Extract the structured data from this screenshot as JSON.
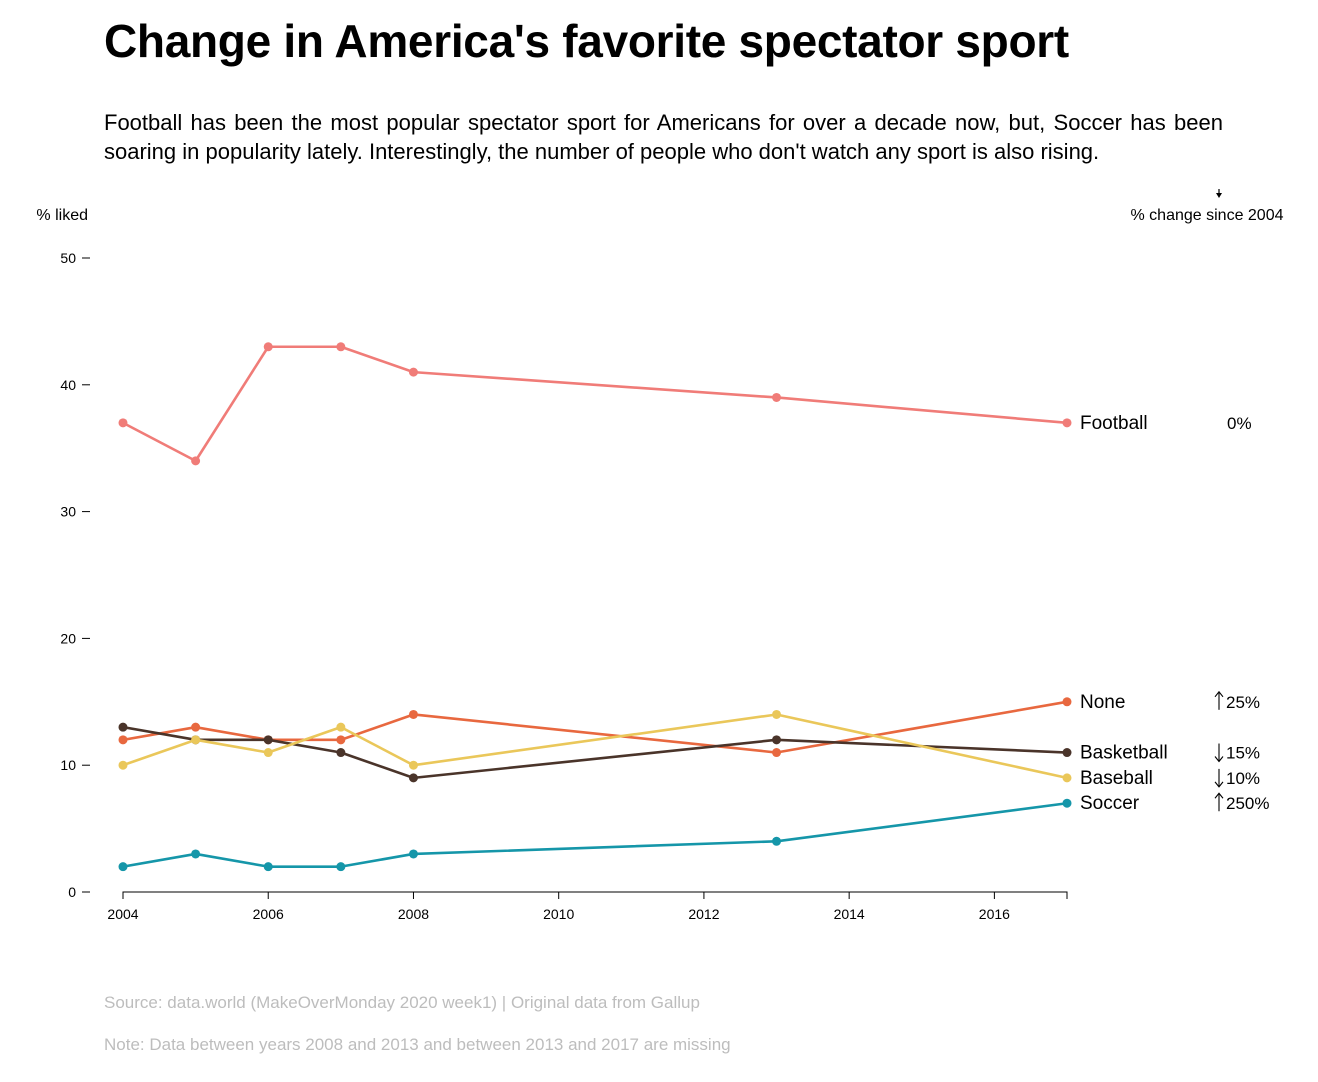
{
  "title": "Change in America's favorite spectator sport",
  "subtitle": "Football has been the most popular spectator sport for Americans for over a decade now, but, Soccer has been soaring in popularity lately. Interestingly, the number of people who don't watch any sport is also rising.",
  "source": "Source: data.world (MakeOverMonday 2020 week1) | Original data from Gallup",
  "note": "Note: Data between years 2008 and 2013 and between 2013 and 2017 are missing",
  "colors": {
    "Football": "#f07c78",
    "None": "#e8683f",
    "Basketball": "#4a342a",
    "Baseball": "#eac75a",
    "Soccer": "#1596a9"
  },
  "chart_data": {
    "type": "line",
    "ylabel": "% liked",
    "change_label": "% change since 2004",
    "xlim": [
      2004,
      2017
    ],
    "ylim": [
      0,
      50
    ],
    "xticks": [
      "2004",
      "2006",
      "2008",
      "2010",
      "2012",
      "2014",
      "2016"
    ],
    "yticks": [
      "0",
      "10",
      "20",
      "30",
      "40",
      "50"
    ],
    "x": [
      2004,
      2005,
      2006,
      2007,
      2008,
      2013,
      2017
    ],
    "grid": false,
    "series": [
      {
        "name": "Football",
        "values": [
          37,
          34,
          43,
          43,
          41,
          39,
          37
        ],
        "change": "0%",
        "direction": ""
      },
      {
        "name": "None",
        "values": [
          12,
          13,
          12,
          12,
          14,
          11,
          15
        ],
        "change": "25%",
        "direction": "up"
      },
      {
        "name": "Basketball",
        "values": [
          13,
          12,
          12,
          11,
          9,
          12,
          11
        ],
        "change": "15%",
        "direction": "down"
      },
      {
        "name": "Baseball",
        "values": [
          10,
          12,
          11,
          13,
          10,
          14,
          9
        ],
        "change": "10%",
        "direction": "down"
      },
      {
        "name": "Soccer",
        "values": [
          2,
          3,
          2,
          2,
          3,
          4,
          7
        ],
        "change": "250%",
        "direction": "up"
      }
    ]
  }
}
